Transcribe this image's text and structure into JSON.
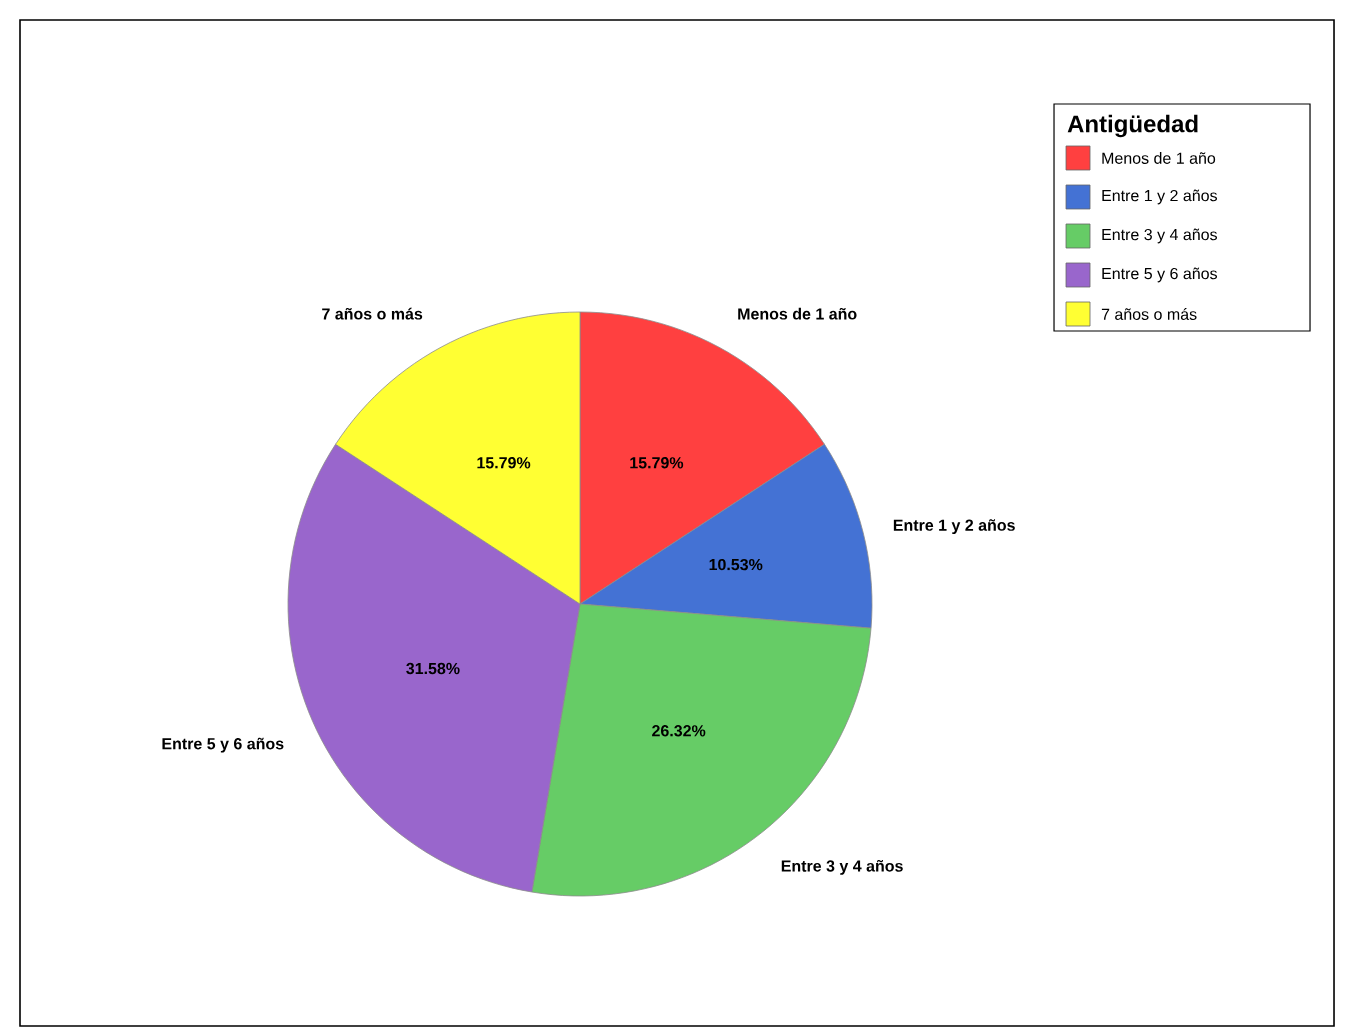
{
  "chart_data": {
    "type": "pie",
    "legend_title": "Antigüedad",
    "categories": [
      "Menos de 1 año",
      "Entre 1 y 2 años",
      "Entre 3 y 4 años",
      "Entre 5 y 6 años",
      "7 años o más"
    ],
    "values": [
      15.79,
      10.53,
      26.32,
      31.58,
      15.79
    ],
    "value_labels": [
      "15.79%",
      "10.53%",
      "26.32%",
      "31.58%",
      "15.79%"
    ],
    "colors": [
      "#ff4040",
      "#4472d4",
      "#66cc66",
      "#9966cc",
      "#ffff33"
    ],
    "legend": "top right"
  }
}
